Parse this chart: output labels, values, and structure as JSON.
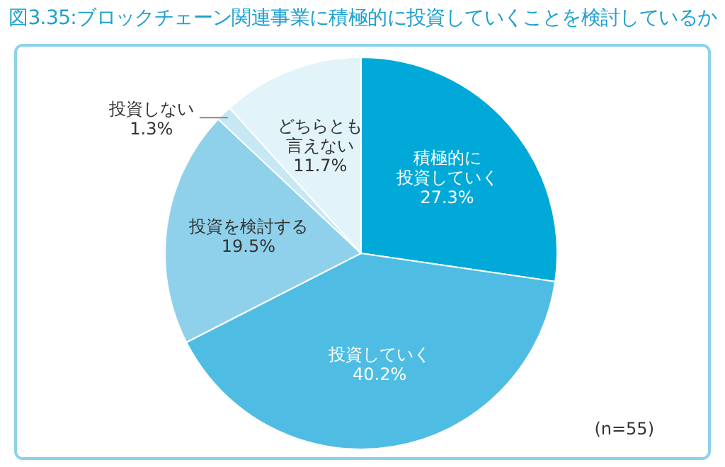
{
  "chart_data": {
    "type": "pie",
    "title": "図3.35:ブロックチェーン関連事業に積極的に投資していくことを検討しているか",
    "categories": [
      "積極的に投資していく",
      "投資していく",
      "投資を検討する",
      "投資しない",
      "どちらとも言えない"
    ],
    "values": [
      27.3,
      40.2,
      19.5,
      1.3,
      11.7
    ],
    "value_labels": [
      "27.3%",
      "40.2%",
      "19.5%",
      "1.3%",
      "11.7%"
    ],
    "colors": [
      "#00a9d8",
      "#4fbde3",
      "#8fd1ea",
      "#c6e7f4",
      "#e2f3f9"
    ],
    "legend": false,
    "annotations": [
      "(n=55)"
    ]
  }
}
